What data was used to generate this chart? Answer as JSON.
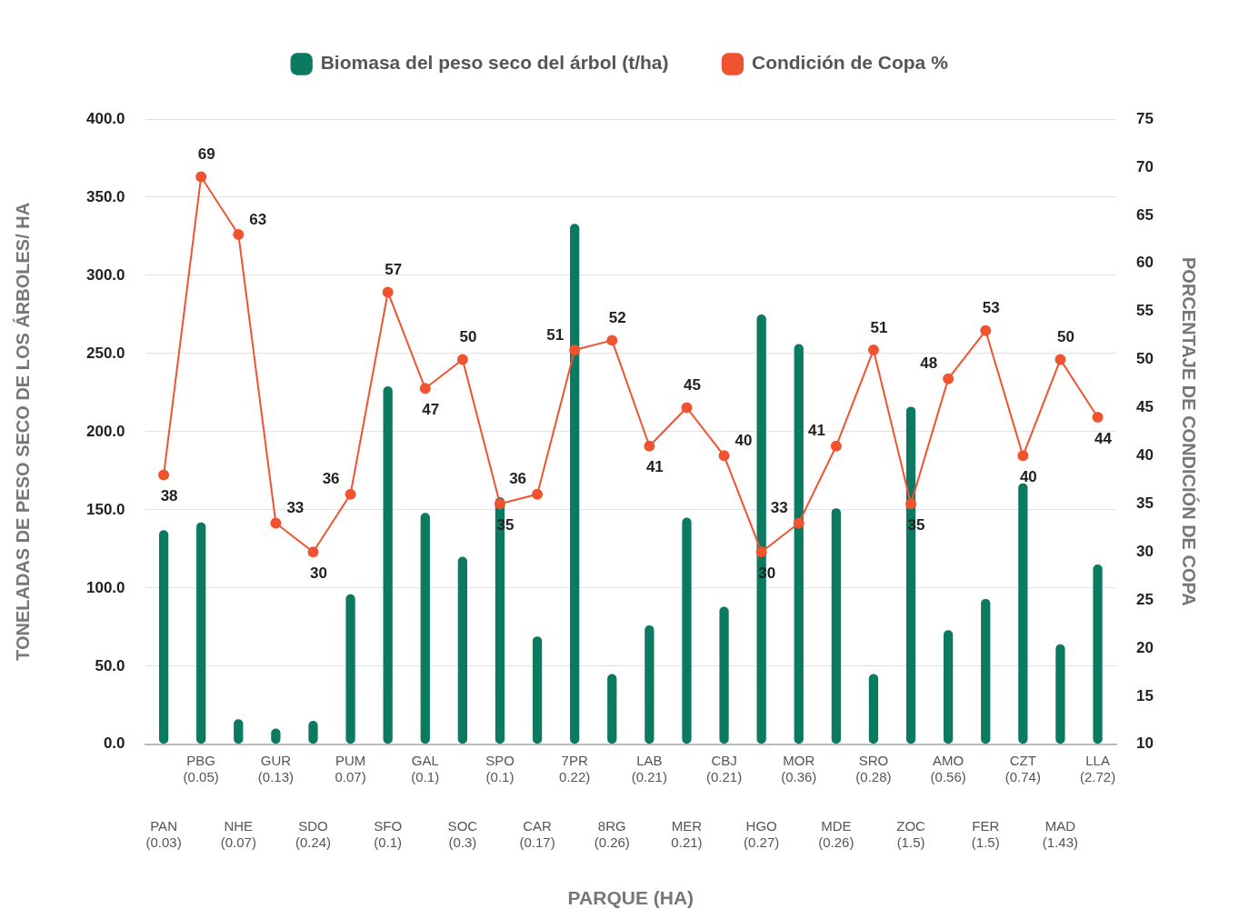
{
  "chart_data": {
    "type": "bar",
    "xlabel": "PARQUE (HA)",
    "ylabel": "TONELADAS DE PESO SECO DE LOS ÁRBOLES/ HA",
    "y2label": "PORCENTAJE DE CONDICIÓN DE COPA",
    "categories": [
      "PAN (0.03)",
      "PBG (0.05)",
      "NHE (0.07)",
      "GUR (0.13)",
      "SDO (0.24)",
      "PUM 0.07)",
      "SFO (0.1)",
      "GAL (0.1)",
      "SOC (0.3)",
      "SPO (0.1)",
      "CAR (0.17)",
      "7PR 0.22)",
      "8RG (0.26)",
      "LAB (0.21)",
      "MER 0.21)",
      "CBJ (0.21)",
      "HGO (0.27)",
      "MOR (0.36)",
      "MDE (0.26)",
      "SRO (0.28)",
      "ZOC (1.5)",
      "AMO (0.56)",
      "FER (1.5)",
      "CZT (0.74)",
      "MAD (1.43)",
      "LLA (2.72)"
    ],
    "series": [
      {
        "name": "Biomasa del peso seco del árbol (t/ha)",
        "color": "#0b7a60",
        "values": [
          137,
          142,
          16,
          10,
          15,
          96,
          229,
          148,
          120,
          158,
          69,
          333,
          45,
          76,
          145,
          88,
          275,
          256,
          151,
          45,
          216,
          73,
          93,
          167,
          64,
          115
        ]
      },
      {
        "name": "Condición de Copa %",
        "type": "line",
        "axis": "y2",
        "color": "#f0532f",
        "marker": "circle",
        "data_labels": true,
        "values": [
          38,
          69,
          63,
          33,
          30,
          36,
          57,
          47,
          50,
          35,
          36,
          51,
          52,
          41,
          45,
          40,
          30,
          33,
          41,
          51,
          35,
          48,
          53,
          40,
          50,
          44
        ]
      }
    ],
    "ylim": [
      0,
      400
    ],
    "yticks": [
      {
        "value": 0,
        "label": "0.0"
      },
      {
        "value": 50,
        "label": "50.0"
      },
      {
        "value": 100,
        "label": "100.0"
      },
      {
        "value": 150,
        "label": "150.0"
      },
      {
        "value": 200,
        "label": "200.0"
      },
      {
        "value": 250,
        "label": "250.0"
      },
      {
        "value": 300,
        "label": "300.0"
      },
      {
        "value": 350,
        "label": "350.0"
      },
      {
        "value": 400,
        "label": "400.0"
      }
    ],
    "y2lim": [
      10,
      75
    ],
    "y2ticks": [
      10,
      15,
      20,
      25,
      30,
      35,
      40,
      45,
      50,
      55,
      60,
      65,
      70,
      75
    ],
    "grid": "y",
    "legend": "top"
  }
}
